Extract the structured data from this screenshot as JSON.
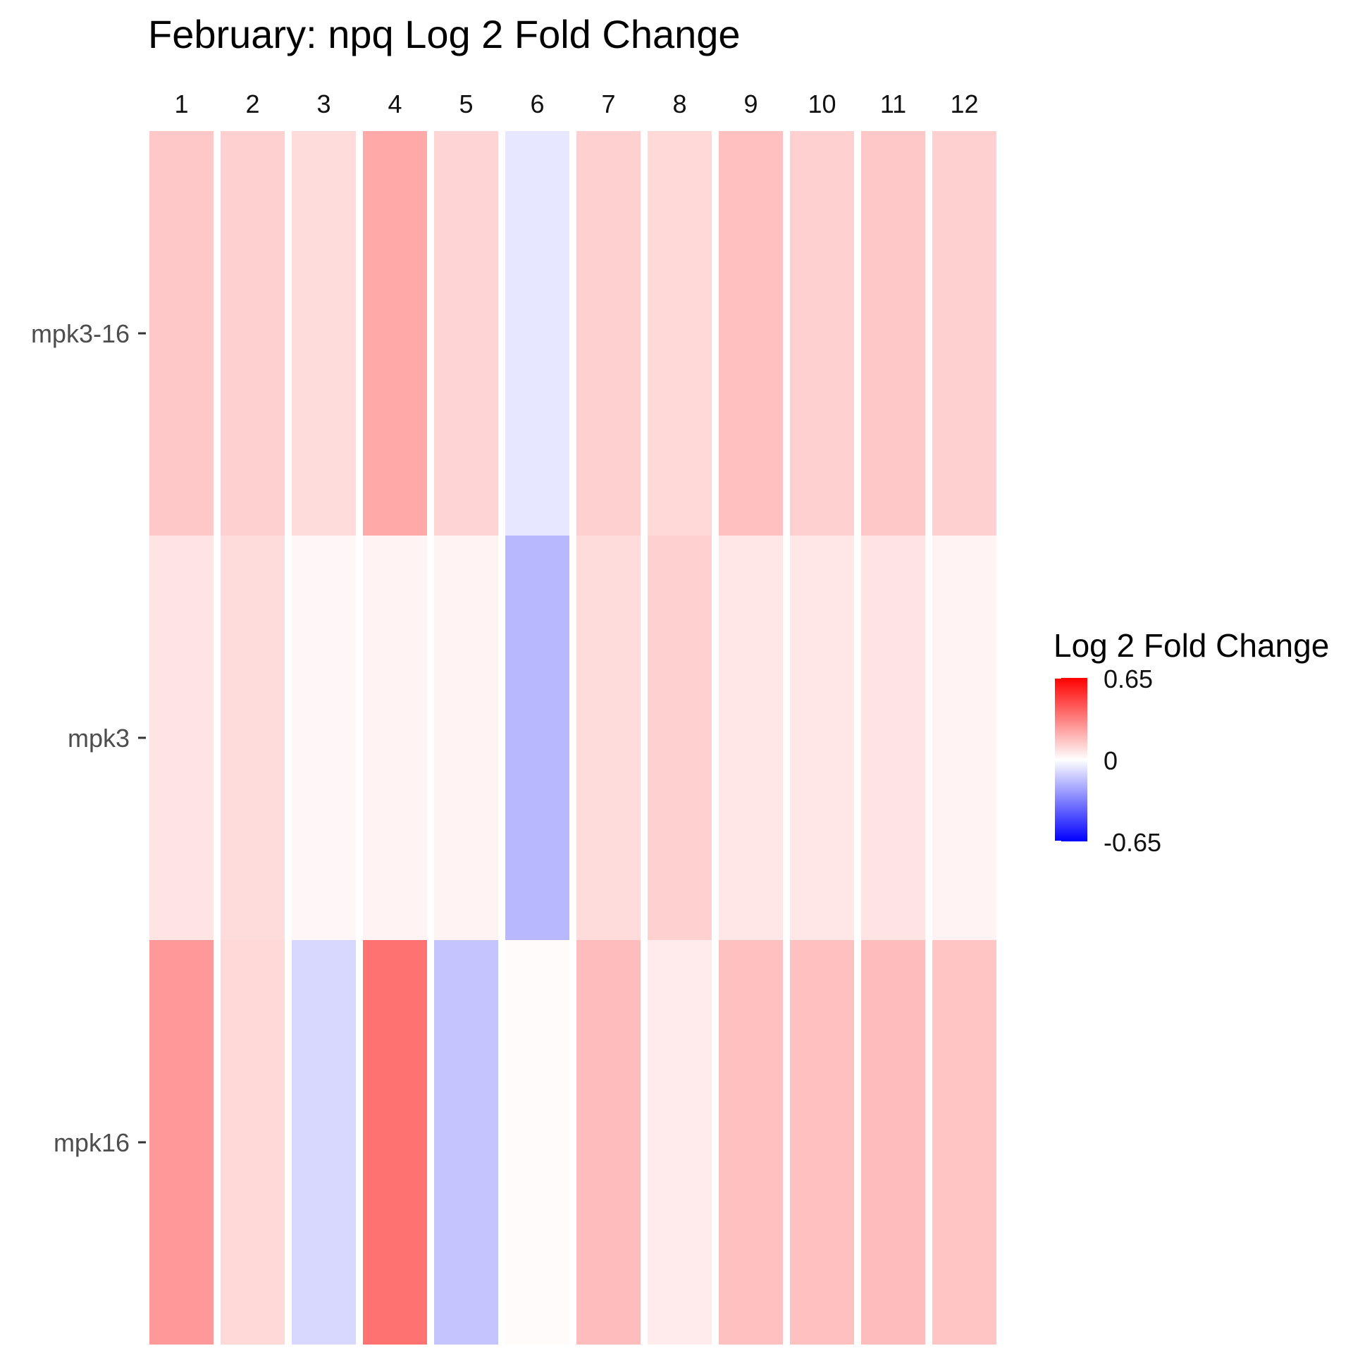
{
  "chart_data": {
    "type": "heatmap",
    "title": "February: npq Log 2 Fold Change",
    "columns": [
      "1",
      "2",
      "3",
      "4",
      "5",
      "6",
      "7",
      "8",
      "9",
      "10",
      "11",
      "12"
    ],
    "rows": [
      "mpk3-16",
      "mpk3",
      "mpk16"
    ],
    "values": [
      [
        0.14,
        0.12,
        0.09,
        0.22,
        0.11,
        -0.06,
        0.12,
        0.1,
        0.16,
        0.12,
        0.14,
        0.12
      ],
      [
        0.07,
        0.09,
        0.02,
        0.03,
        0.03,
        -0.18,
        0.09,
        0.12,
        0.06,
        0.06,
        0.07,
        0.03
      ],
      [
        0.26,
        0.1,
        -0.1,
        0.36,
        -0.15,
        0.01,
        0.17,
        0.05,
        0.16,
        0.16,
        0.17,
        0.15
      ]
    ],
    "legend": {
      "title": "Log 2 Fold Change",
      "position": "right",
      "min": -0.65,
      "max": 0.65,
      "tick_labels": [
        "0.65",
        "0",
        "-0.65"
      ],
      "colors": {
        "low": "#0000ff",
        "mid": "#ffffff",
        "high": "#ff0000"
      }
    },
    "grid": false
  }
}
